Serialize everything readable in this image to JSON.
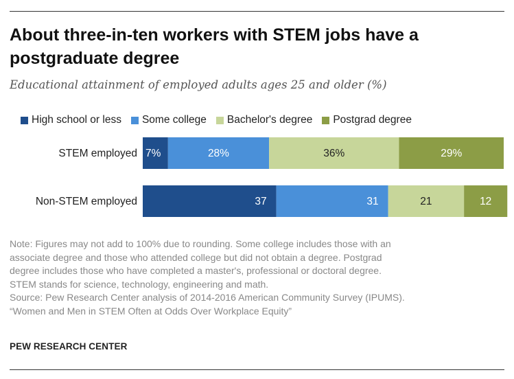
{
  "title": "About three-in-ten workers with STEM jobs have a postgraduate degree",
  "subtitle": "Educational attainment of employed adults ages 25 and older (%)",
  "legend": [
    {
      "label": "High school or less",
      "color": "#1f4e8c"
    },
    {
      "label": "Some college",
      "color": "#4a90d9"
    },
    {
      "label": "Bachelor's degree",
      "color": "#c7d69a"
    },
    {
      "label": "Postgrad degree",
      "color": "#8c9d46"
    }
  ],
  "chart_data": {
    "type": "bar",
    "orientation": "horizontal",
    "stacked": true,
    "title": "About three-in-ten workers with STEM jobs have a postgraduate degree",
    "subtitle": "Educational attainment of employed adults ages 25 and older (%)",
    "categories": [
      "STEM employed",
      "Non-STEM employed"
    ],
    "series": [
      {
        "name": "High school or less",
        "color": "#1f4e8c",
        "values": [
          7,
          37
        ],
        "labels": [
          "7%",
          "37"
        ],
        "label_color": "#ffffff"
      },
      {
        "name": "Some college",
        "color": "#4a90d9",
        "values": [
          28,
          31
        ],
        "labels": [
          "28%",
          "31"
        ],
        "label_color": "#ffffff"
      },
      {
        "name": "Bachelor's degree",
        "color": "#c7d69a",
        "values": [
          36,
          21
        ],
        "labels": [
          "36%",
          "21"
        ],
        "label_color": "#222222"
      },
      {
        "name": "Postgrad degree",
        "color": "#8c9d46",
        "values": [
          29,
          12
        ],
        "labels": [
          "29%",
          "12"
        ],
        "label_color": "#ffffff"
      }
    ],
    "xlim": [
      0,
      100
    ],
    "grid": false,
    "legend_position": "top"
  },
  "note_lines": [
    "Note: Figures may not add to 100% due to rounding. Some college includes those with an",
    "associate degree and those who attended college but did not obtain a degree. Postgrad",
    "degree includes those who have completed a master's, professional or doctoral degree.",
    "STEM stands for science, technology, engineering and math.",
    "Source: Pew Research Center analysis of 2014-2016 American Community Survey (IPUMS).",
    "“Women and Men in STEM Often at Odds Over Workplace Equity”"
  ],
  "source_org": "PEW RESEARCH CENTER"
}
